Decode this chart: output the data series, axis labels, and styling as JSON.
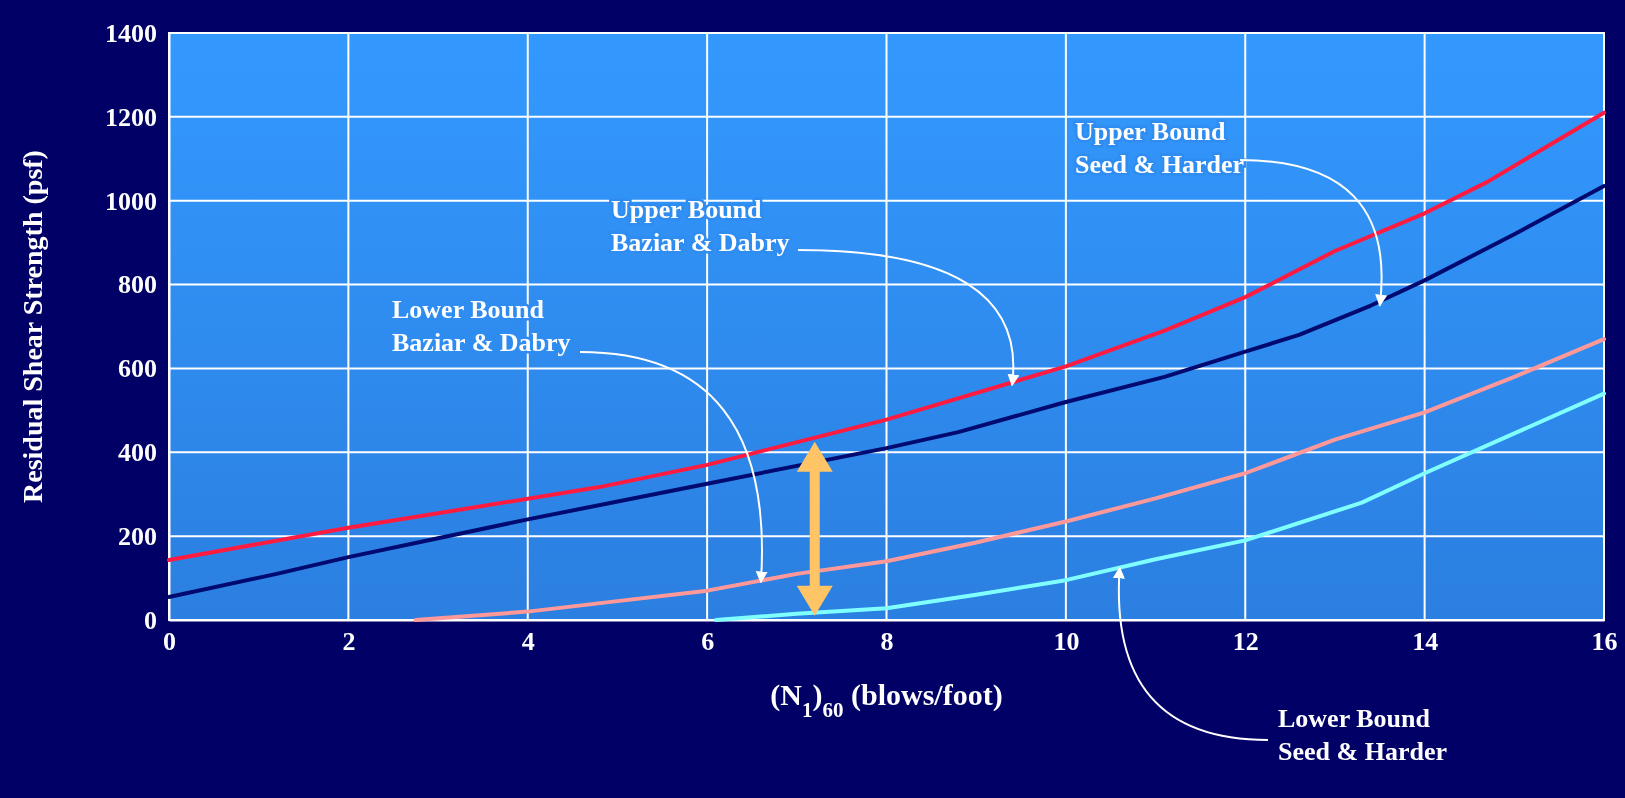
{
  "chart_data": {
    "type": "line",
    "xlabel": "(N$_{1}$)$_{60}$ (blows/foot)",
    "ylabel": "Residual Shear Strength (psf)",
    "xlim": [
      0,
      16
    ],
    "xticks": [
      0,
      2,
      4,
      6,
      8,
      10,
      12,
      14,
      16
    ],
    "ylim": [
      0,
      1400
    ],
    "yticks": [
      0,
      200,
      400,
      600,
      800,
      1000,
      1200,
      1400
    ],
    "grid": true,
    "marker": "none",
    "line_style": "solid",
    "series": [
      {
        "color": "#ff1a40",
        "x": [
          0,
          2,
          4.8,
          6,
          8,
          10,
          11.1,
          12,
          13,
          14,
          14.7,
          16
        ],
        "values": [
          143,
          220,
          317,
          370,
          478,
          605,
          690,
          770,
          880,
          970,
          1045,
          1210
        ]
      },
      {
        "color": "#000a70",
        "x": [
          0,
          1.2,
          2,
          3,
          4,
          6,
          8,
          8.8,
          10,
          11.1,
          12,
          12.6,
          13.4,
          14,
          15,
          16
        ],
        "values": [
          55,
          110,
          150,
          195,
          240,
          325,
          410,
          448,
          520,
          580,
          640,
          680,
          750,
          810,
          920,
          1035
        ]
      },
      {
        "color": "#ff9999",
        "x": [
          2.75,
          4,
          5,
          6,
          7,
          8,
          9,
          10,
          11,
          12,
          13,
          14,
          15,
          16
        ],
        "values": [
          0,
          20,
          45,
          70,
          110,
          140,
          185,
          235,
          290,
          350,
          430,
          495,
          580,
          670
        ]
      },
      {
        "color": "#80ffff",
        "x": [
          6.1,
          7,
          8,
          9,
          10,
          11,
          12,
          13.3,
          14,
          15,
          16
        ],
        "values": [
          0,
          15,
          28,
          60,
          95,
          145,
          190,
          280,
          350,
          445,
          540
        ]
      }
    ],
    "annotations": [
      {
        "text": "Upper Bound\nSeed & Harder",
        "x": 13.5,
        "y": 750
      },
      {
        "text": "Upper Bound\nBaziar & Dabry",
        "x": 9.4,
        "y": 560
      },
      {
        "text": "Lower Bound\nBaziar & Dabry",
        "x": 6.6,
        "y": 90
      },
      {
        "text": "Lower Bound\nSeed & Harder",
        "x": 10.6,
        "y": 125
      }
    ]
  }
}
